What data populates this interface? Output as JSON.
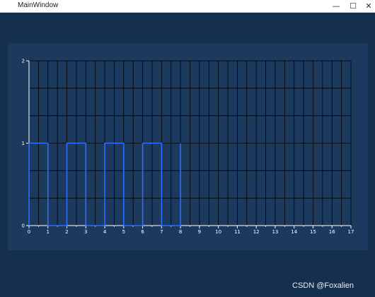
{
  "window": {
    "title": "MainWindow",
    "minimize_glyph": "—",
    "maximize_glyph": "☐",
    "close_glyph": "✕"
  },
  "colors": {
    "background": "#15304f",
    "panel": "#1c3a5e",
    "grid": "#000000",
    "signal": "#2f6bff",
    "axis": "#ffffff"
  },
  "chart_data": {
    "type": "line",
    "title": "",
    "xlabel": "",
    "ylabel": "",
    "xlim": [
      0,
      17
    ],
    "ylim": [
      0,
      2
    ],
    "x_ticks": [
      0,
      1,
      2,
      3,
      4,
      5,
      6,
      7,
      8,
      9,
      10,
      11,
      12,
      13,
      14,
      15,
      16,
      17
    ],
    "y_ticks": [
      0,
      1,
      2
    ],
    "grid": true,
    "series": [
      {
        "x": [
          0,
          0,
          1,
          1,
          2,
          2,
          3,
          3,
          4,
          4,
          5,
          5,
          6,
          6,
          7,
          7,
          8,
          8,
          8
        ],
        "y": [
          0,
          1,
          1,
          0,
          0,
          1,
          1,
          0,
          0,
          1,
          1,
          0,
          0,
          1,
          1,
          0,
          0,
          1,
          0
        ]
      }
    ]
  },
  "watermark": "CSDN @Foxalien"
}
